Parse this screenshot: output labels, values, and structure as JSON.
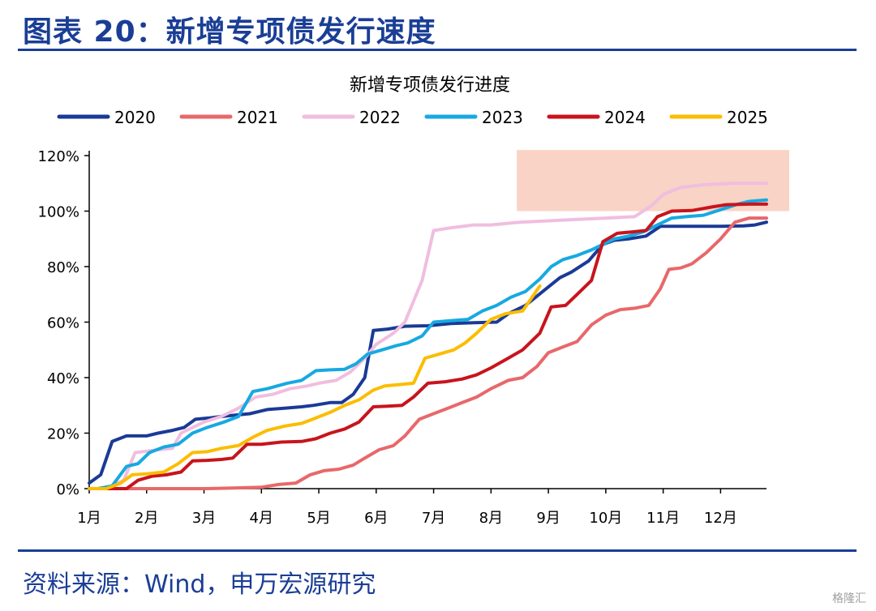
{
  "header": {
    "title": "图表 20：新增专项债发行速度"
  },
  "footer": {
    "source": "资料来源：Wind，申万宏源研究",
    "watermark": "格隆汇"
  },
  "colors": {
    "brand": "#1a3e96",
    "highlight": "#f9d3c5"
  },
  "chart_data": {
    "type": "line",
    "title": "新增专项债发行进度",
    "xlabel": "",
    "ylabel": "",
    "x_ticks": [
      "1月",
      "2月",
      "3月",
      "4月",
      "5月",
      "6月",
      "7月",
      "8月",
      "9月",
      "10月",
      "11月",
      "12月"
    ],
    "x_range": [
      1,
      12.8
    ],
    "y_ticks": [
      "0%",
      "20%",
      "40%",
      "60%",
      "80%",
      "100%",
      "120%"
    ],
    "ylim": [
      0,
      120
    ],
    "legend_position": "top",
    "highlight_band": {
      "x": [
        8.45,
        12.8
      ],
      "y": [
        100,
        122
      ]
    },
    "series": [
      {
        "name": "2020",
        "color": "#1a3a96",
        "points": [
          [
            1,
            2
          ],
          [
            1.2,
            5
          ],
          [
            1.4,
            17
          ],
          [
            1.65,
            19
          ],
          [
            2,
            19
          ],
          [
            2.2,
            20
          ],
          [
            2.45,
            21
          ],
          [
            2.65,
            22
          ],
          [
            2.85,
            25
          ],
          [
            3.1,
            25.5
          ],
          [
            3.3,
            26
          ],
          [
            3.55,
            26.5
          ],
          [
            3.8,
            27
          ],
          [
            4.1,
            28.5
          ],
          [
            4.4,
            29
          ],
          [
            4.7,
            29.5
          ],
          [
            4.9,
            30
          ],
          [
            5.2,
            31
          ],
          [
            5.4,
            31
          ],
          [
            5.6,
            34
          ],
          [
            5.8,
            40
          ],
          [
            5.95,
            57
          ],
          [
            6.2,
            57.5
          ],
          [
            6.5,
            58.5
          ],
          [
            6.9,
            58.7
          ],
          [
            7.3,
            59.5
          ],
          [
            7.7,
            59.8
          ],
          [
            8.1,
            60
          ],
          [
            8.3,
            63
          ],
          [
            8.6,
            66
          ],
          [
            8.9,
            71
          ],
          [
            9.2,
            76
          ],
          [
            9.4,
            78
          ],
          [
            9.7,
            82
          ],
          [
            9.95,
            88
          ],
          [
            10.15,
            89.5
          ],
          [
            10.4,
            90
          ],
          [
            10.7,
            91
          ],
          [
            10.95,
            94.5
          ],
          [
            11.3,
            94.5
          ],
          [
            11.7,
            94.5
          ],
          [
            12,
            94.5
          ],
          [
            12.4,
            94.7
          ],
          [
            12.6,
            95
          ],
          [
            12.8,
            96
          ]
        ]
      },
      {
        "name": "2021",
        "color": "#e8686a",
        "points": [
          [
            1,
            0
          ],
          [
            1.5,
            0
          ],
          [
            2,
            0
          ],
          [
            2.5,
            0
          ],
          [
            3,
            0
          ],
          [
            3.5,
            0.2
          ],
          [
            4,
            0.5
          ],
          [
            4.3,
            1.5
          ],
          [
            4.6,
            2
          ],
          [
            4.85,
            5
          ],
          [
            5.1,
            6.5
          ],
          [
            5.35,
            7
          ],
          [
            5.6,
            8.5
          ],
          [
            5.8,
            11
          ],
          [
            6.05,
            14
          ],
          [
            6.3,
            15.5
          ],
          [
            6.5,
            19
          ],
          [
            6.75,
            25
          ],
          [
            7,
            27
          ],
          [
            7.25,
            29
          ],
          [
            7.5,
            31
          ],
          [
            7.75,
            33
          ],
          [
            8,
            36
          ],
          [
            8.3,
            39
          ],
          [
            8.55,
            40
          ],
          [
            8.8,
            44
          ],
          [
            9,
            49
          ],
          [
            9.25,
            51
          ],
          [
            9.5,
            53
          ],
          [
            9.75,
            59
          ],
          [
            10,
            62.5
          ],
          [
            10.25,
            64.5
          ],
          [
            10.5,
            65
          ],
          [
            10.75,
            66
          ],
          [
            10.95,
            72
          ],
          [
            11.1,
            79
          ],
          [
            11.3,
            79.5
          ],
          [
            11.5,
            81
          ],
          [
            11.75,
            85
          ],
          [
            12,
            90
          ],
          [
            12.25,
            96
          ],
          [
            12.5,
            97.5
          ],
          [
            12.8,
            97.5
          ]
        ]
      },
      {
        "name": "2022",
        "color": "#f0bedf",
        "points": [
          [
            1,
            0
          ],
          [
            1.3,
            0
          ],
          [
            1.6,
            3
          ],
          [
            1.8,
            13
          ],
          [
            2,
            13.5
          ],
          [
            2.2,
            14
          ],
          [
            2.45,
            14.5
          ],
          [
            2.6,
            20
          ],
          [
            2.8,
            22
          ],
          [
            3,
            24
          ],
          [
            3.3,
            26
          ],
          [
            3.6,
            29
          ],
          [
            3.9,
            33
          ],
          [
            4.2,
            34
          ],
          [
            4.5,
            36
          ],
          [
            4.8,
            37
          ],
          [
            5,
            38
          ],
          [
            5.3,
            39
          ],
          [
            5.55,
            42
          ],
          [
            5.8,
            47
          ],
          [
            6,
            52
          ],
          [
            6.3,
            56
          ],
          [
            6.5,
            60
          ],
          [
            6.8,
            75
          ],
          [
            7,
            93
          ],
          [
            7.3,
            94
          ],
          [
            7.7,
            95
          ],
          [
            8,
            95
          ],
          [
            8.5,
            96
          ],
          [
            9,
            96.5
          ],
          [
            9.5,
            97
          ],
          [
            10,
            97.5
          ],
          [
            10.5,
            98
          ],
          [
            10.8,
            102
          ],
          [
            11,
            106
          ],
          [
            11.3,
            108.5
          ],
          [
            11.7,
            109.5
          ],
          [
            12.2,
            110
          ],
          [
            12.8,
            110
          ]
        ]
      },
      {
        "name": "2023",
        "color": "#17a9e1",
        "points": [
          [
            1,
            0
          ],
          [
            1.15,
            0
          ],
          [
            1.4,
            1
          ],
          [
            1.65,
            8
          ],
          [
            1.85,
            9
          ],
          [
            2.05,
            13
          ],
          [
            2.3,
            15
          ],
          [
            2.55,
            16
          ],
          [
            2.8,
            20
          ],
          [
            3.05,
            22
          ],
          [
            3.35,
            24
          ],
          [
            3.6,
            26
          ],
          [
            3.85,
            35
          ],
          [
            4.1,
            36
          ],
          [
            4.45,
            38
          ],
          [
            4.7,
            39
          ],
          [
            4.95,
            42.5
          ],
          [
            5.2,
            42.8
          ],
          [
            5.45,
            43
          ],
          [
            5.65,
            45
          ],
          [
            5.85,
            48.5
          ],
          [
            6.1,
            50
          ],
          [
            6.35,
            51.5
          ],
          [
            6.55,
            52.5
          ],
          [
            6.8,
            55
          ],
          [
            7,
            60
          ],
          [
            7.3,
            60.5
          ],
          [
            7.6,
            61
          ],
          [
            7.85,
            64
          ],
          [
            8.1,
            66
          ],
          [
            8.35,
            69
          ],
          [
            8.6,
            71
          ],
          [
            8.85,
            75.5
          ],
          [
            9.05,
            80
          ],
          [
            9.25,
            82.5
          ],
          [
            9.5,
            84
          ],
          [
            9.75,
            86
          ],
          [
            9.95,
            88
          ],
          [
            10.15,
            90
          ],
          [
            10.4,
            91
          ],
          [
            10.65,
            92.5
          ],
          [
            10.9,
            95
          ],
          [
            11.15,
            97.5
          ],
          [
            11.4,
            98
          ],
          [
            11.7,
            98.5
          ],
          [
            12,
            100.5
          ],
          [
            12.3,
            102.5
          ],
          [
            12.5,
            103.5
          ],
          [
            12.8,
            104
          ]
        ]
      },
      {
        "name": "2024",
        "color": "#c8141c",
        "points": [
          [
            1,
            0
          ],
          [
            1.4,
            0
          ],
          [
            1.65,
            0
          ],
          [
            1.85,
            3
          ],
          [
            2.1,
            4.5
          ],
          [
            2.35,
            5
          ],
          [
            2.6,
            6
          ],
          [
            2.8,
            10
          ],
          [
            3.05,
            10.2
          ],
          [
            3.3,
            10.5
          ],
          [
            3.5,
            11
          ],
          [
            3.75,
            16
          ],
          [
            4,
            16
          ],
          [
            4.35,
            16.8
          ],
          [
            4.7,
            17
          ],
          [
            4.95,
            18
          ],
          [
            5.2,
            20
          ],
          [
            5.45,
            21.5
          ],
          [
            5.7,
            24
          ],
          [
            5.95,
            29.5
          ],
          [
            6.2,
            29.7
          ],
          [
            6.45,
            30
          ],
          [
            6.65,
            33
          ],
          [
            6.9,
            38
          ],
          [
            7.2,
            38.5
          ],
          [
            7.5,
            39.5
          ],
          [
            7.75,
            41
          ],
          [
            8,
            43.5
          ],
          [
            8.3,
            47
          ],
          [
            8.55,
            50
          ],
          [
            8.85,
            56
          ],
          [
            9.05,
            65.5
          ],
          [
            9.3,
            66
          ],
          [
            9.5,
            70
          ],
          [
            9.75,
            75
          ],
          [
            9.95,
            89
          ],
          [
            10.2,
            92
          ],
          [
            10.45,
            92.5
          ],
          [
            10.7,
            93
          ],
          [
            10.9,
            98
          ],
          [
            11.15,
            100
          ],
          [
            11.5,
            100.2
          ],
          [
            11.85,
            101.5
          ],
          [
            12.1,
            102.3
          ],
          [
            12.5,
            102.5
          ],
          [
            12.8,
            102.5
          ]
        ]
      },
      {
        "name": "2025",
        "color": "#fbbd00",
        "points": [
          [
            1,
            0
          ],
          [
            1.3,
            0
          ],
          [
            1.55,
            2
          ],
          [
            1.75,
            5
          ],
          [
            2,
            5.3
          ],
          [
            2.3,
            6
          ],
          [
            2.55,
            9
          ],
          [
            2.8,
            13
          ],
          [
            3.05,
            13.3
          ],
          [
            3.3,
            14.5
          ],
          [
            3.6,
            15.5
          ],
          [
            3.85,
            18.5
          ],
          [
            4.1,
            21
          ],
          [
            4.4,
            22.5
          ],
          [
            4.7,
            23.5
          ],
          [
            4.95,
            25.5
          ],
          [
            5.2,
            27.5
          ],
          [
            5.45,
            30
          ],
          [
            5.7,
            32
          ],
          [
            5.95,
            35.5
          ],
          [
            6.15,
            37
          ],
          [
            6.4,
            37.5
          ],
          [
            6.65,
            38
          ],
          [
            6.85,
            47
          ],
          [
            7.1,
            48.5
          ],
          [
            7.35,
            50
          ],
          [
            7.55,
            52.5
          ],
          [
            7.75,
            56
          ],
          [
            8,
            61
          ],
          [
            8.25,
            63
          ],
          [
            8.55,
            64
          ],
          [
            8.85,
            73
          ]
        ]
      }
    ]
  }
}
